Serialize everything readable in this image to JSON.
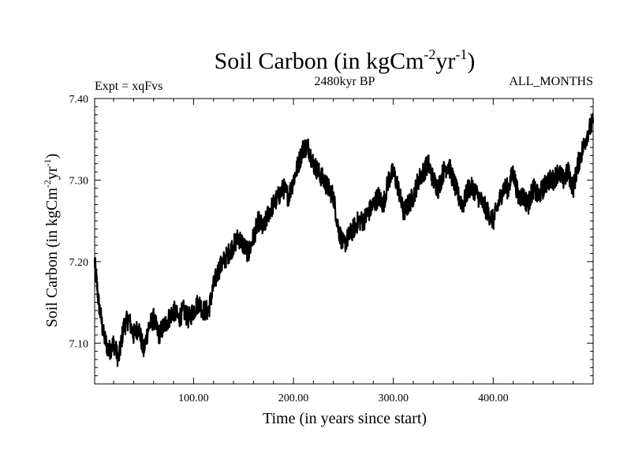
{
  "chart_data": {
    "type": "line",
    "title": {
      "main": "Soil Carbon (in kgCm",
      "sup1": "-2",
      "mid": "yr",
      "sup2": "-1",
      "end": ")"
    },
    "experiment_label": "Expt = xqFvs",
    "period_label": "2480kyr BP",
    "months_label": "ALL_MONTHS",
    "xlabel": "Time (in years since start)",
    "ylabel": {
      "main": "Soil Carbon (in kgCm",
      "sup1": "-2",
      "mid": "yr",
      "sup2": "-1",
      "end": ")"
    },
    "xlim": [
      1,
      500
    ],
    "ylim": [
      7.05,
      7.4
    ],
    "x_ticks": [
      100,
      200,
      300,
      400
    ],
    "x_tick_labels": [
      "100.00",
      "200.00",
      "300.00",
      "400.00"
    ],
    "y_ticks": [
      7.1,
      7.2,
      7.3,
      7.4
    ],
    "y_tick_labels": [
      "7.10",
      "7.20",
      "7.30",
      "7.40"
    ],
    "series": [
      {
        "name": "Soil Carbon",
        "color": "#000000",
        "x": [
          1,
          5,
          10,
          15,
          20,
          25,
          30,
          35,
          40,
          45,
          50,
          55,
          60,
          65,
          70,
          75,
          80,
          85,
          90,
          95,
          100,
          105,
          110,
          115,
          120,
          125,
          130,
          135,
          140,
          145,
          150,
          155,
          160,
          165,
          170,
          175,
          180,
          185,
          190,
          195,
          200,
          205,
          210,
          215,
          220,
          225,
          230,
          235,
          240,
          245,
          250,
          255,
          260,
          265,
          270,
          275,
          280,
          285,
          290,
          295,
          300,
          305,
          310,
          315,
          320,
          325,
          330,
          335,
          340,
          345,
          350,
          355,
          360,
          365,
          370,
          375,
          380,
          385,
          390,
          395,
          400,
          405,
          410,
          415,
          420,
          425,
          430,
          435,
          440,
          445,
          450,
          455,
          460,
          465,
          470,
          475,
          480,
          485,
          490,
          495,
          500
        ],
        "y": [
          7.2,
          7.15,
          7.11,
          7.09,
          7.1,
          7.08,
          7.12,
          7.13,
          7.11,
          7.12,
          7.09,
          7.12,
          7.13,
          7.11,
          7.12,
          7.13,
          7.14,
          7.13,
          7.14,
          7.13,
          7.14,
          7.15,
          7.14,
          7.14,
          7.17,
          7.19,
          7.2,
          7.21,
          7.22,
          7.23,
          7.22,
          7.21,
          7.23,
          7.25,
          7.24,
          7.26,
          7.27,
          7.28,
          7.29,
          7.28,
          7.3,
          7.32,
          7.34,
          7.34,
          7.32,
          7.31,
          7.3,
          7.29,
          7.28,
          7.24,
          7.22,
          7.23,
          7.24,
          7.25,
          7.25,
          7.26,
          7.27,
          7.28,
          7.27,
          7.3,
          7.31,
          7.29,
          7.26,
          7.27,
          7.28,
          7.3,
          7.31,
          7.32,
          7.3,
          7.29,
          7.31,
          7.32,
          7.3,
          7.28,
          7.27,
          7.29,
          7.29,
          7.28,
          7.27,
          7.26,
          7.25,
          7.27,
          7.29,
          7.29,
          7.31,
          7.28,
          7.28,
          7.27,
          7.29,
          7.28,
          7.29,
          7.3,
          7.3,
          7.31,
          7.3,
          7.31,
          7.29,
          7.32,
          7.34,
          7.36,
          7.37
        ]
      }
    ]
  }
}
